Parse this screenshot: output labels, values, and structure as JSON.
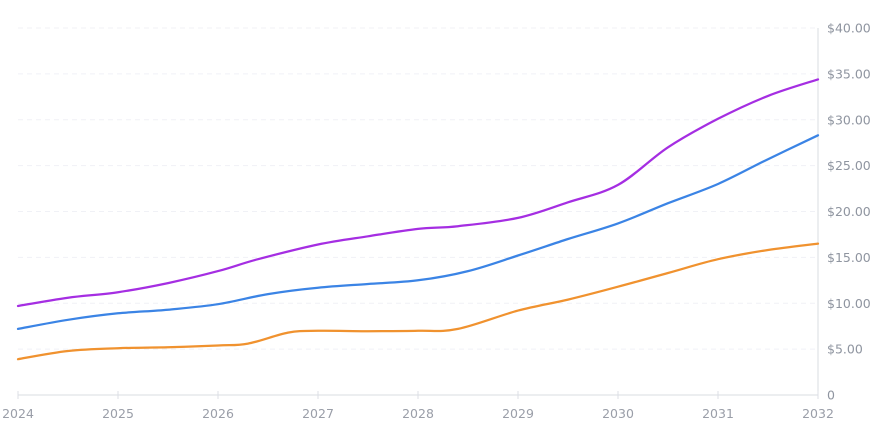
{
  "chart_data": {
    "type": "line",
    "title": "",
    "legend": "none",
    "grid": "horizontal-dashed",
    "x_axis": {
      "tick_labels": [
        "2024",
        "2025",
        "2026",
        "2027",
        "2028",
        "2029",
        "2030",
        "2031",
        "2032"
      ],
      "tick_values": [
        2024,
        2025,
        2026,
        2027,
        2028,
        2029,
        2030,
        2031,
        2032
      ],
      "range": [
        2024,
        2032
      ],
      "position": "bottom"
    },
    "y_axis": {
      "tick_labels": [
        "$40.00",
        "$35.00",
        "$30.00",
        "$25.00",
        "$20.00",
        "$15.00",
        "$10.00",
        "$5.00",
        "0"
      ],
      "tick_values": [
        40,
        35,
        30,
        25,
        20,
        15,
        10,
        5,
        0
      ],
      "range": [
        0,
        40
      ],
      "position": "right"
    },
    "series": [
      {
        "name": "purple-series",
        "color": "#a52ee2",
        "points": [
          [
            2024,
            9.7
          ],
          [
            2024.5,
            10.6
          ],
          [
            2025,
            11.2
          ],
          [
            2025.5,
            12.2
          ],
          [
            2026,
            13.5
          ],
          [
            2026.4,
            14.8
          ],
          [
            2027,
            16.4
          ],
          [
            2027.5,
            17.3
          ],
          [
            2028,
            18.1
          ],
          [
            2028.4,
            18.4
          ],
          [
            2029,
            19.3
          ],
          [
            2029.5,
            21.0
          ],
          [
            2030,
            22.9
          ],
          [
            2030.5,
            27.0
          ],
          [
            2031,
            30.1
          ],
          [
            2031.5,
            32.6
          ],
          [
            2032,
            34.4
          ]
        ]
      },
      {
        "name": "blue-series",
        "color": "#3b84e5",
        "points": [
          [
            2024,
            7.2
          ],
          [
            2024.5,
            8.2
          ],
          [
            2025,
            8.9
          ],
          [
            2025.5,
            9.3
          ],
          [
            2026,
            9.9
          ],
          [
            2026.5,
            11.0
          ],
          [
            2027,
            11.7
          ],
          [
            2027.5,
            12.1
          ],
          [
            2028,
            12.5
          ],
          [
            2028.5,
            13.5
          ],
          [
            2029,
            15.2
          ],
          [
            2029.5,
            17.0
          ],
          [
            2030,
            18.7
          ],
          [
            2030.5,
            20.9
          ],
          [
            2031,
            23.0
          ],
          [
            2031.5,
            25.7
          ],
          [
            2032,
            28.3
          ]
        ]
      },
      {
        "name": "orange-series",
        "color": "#f0922f",
        "points": [
          [
            2024,
            3.9
          ],
          [
            2024.5,
            4.8
          ],
          [
            2025,
            5.1
          ],
          [
            2025.5,
            5.2
          ],
          [
            2026,
            5.4
          ],
          [
            2026.3,
            5.6
          ],
          [
            2026.7,
            6.8
          ],
          [
            2027,
            7.0
          ],
          [
            2027.5,
            6.95
          ],
          [
            2028,
            7.0
          ],
          [
            2028.4,
            7.2
          ],
          [
            2029,
            9.2
          ],
          [
            2029.5,
            10.4
          ],
          [
            2030,
            11.8
          ],
          [
            2030.5,
            13.3
          ],
          [
            2031,
            14.8
          ],
          [
            2031.5,
            15.8
          ],
          [
            2032,
            16.5
          ]
        ]
      }
    ]
  },
  "colors": {
    "background": "#ffffff",
    "grid": "#f0f1f6",
    "axis": "#d9dce2",
    "tick": "#dcdfe5",
    "y_label_text": "#8f95a0",
    "x_label_text": "#9a9ea8"
  }
}
